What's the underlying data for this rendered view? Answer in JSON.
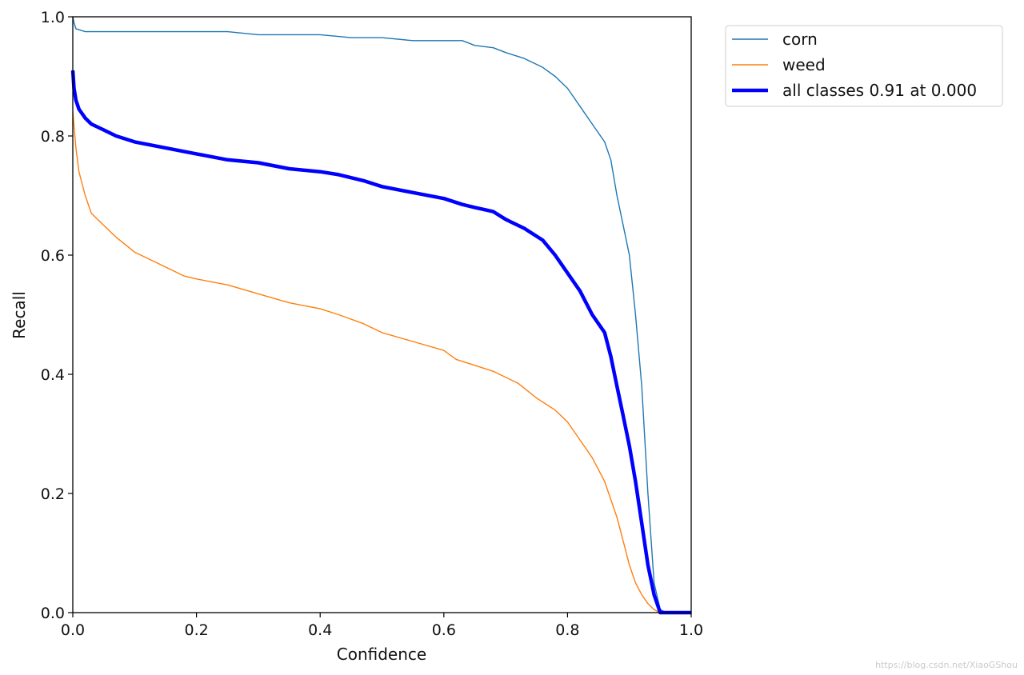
{
  "chart_data": {
    "type": "line",
    "title": "",
    "xlabel": "Confidence",
    "ylabel": "Recall",
    "xlim": [
      0,
      1
    ],
    "ylim": [
      0,
      1
    ],
    "xticks": [
      "0.0",
      "0.2",
      "0.4",
      "0.6",
      "0.8",
      "1.0"
    ],
    "yticks": [
      "0.0",
      "0.2",
      "0.4",
      "0.6",
      "0.8",
      "1.0"
    ],
    "grid": false,
    "legend_position": "outside-top-right",
    "series": [
      {
        "name": "corn",
        "color": "#1f77b4",
        "x": [
          0.0,
          0.002,
          0.005,
          0.02,
          0.05,
          0.1,
          0.15,
          0.2,
          0.25,
          0.3,
          0.35,
          0.4,
          0.45,
          0.5,
          0.55,
          0.6,
          0.63,
          0.65,
          0.68,
          0.7,
          0.73,
          0.76,
          0.78,
          0.8,
          0.82,
          0.84,
          0.86,
          0.87,
          0.88,
          0.89,
          0.9,
          0.91,
          0.92,
          0.93,
          0.94,
          0.95,
          0.96,
          0.97,
          0.98,
          1.0
        ],
        "y": [
          1.0,
          0.99,
          0.98,
          0.975,
          0.975,
          0.975,
          0.975,
          0.975,
          0.975,
          0.97,
          0.97,
          0.97,
          0.965,
          0.965,
          0.96,
          0.96,
          0.96,
          0.952,
          0.948,
          0.94,
          0.93,
          0.915,
          0.9,
          0.88,
          0.85,
          0.82,
          0.79,
          0.76,
          0.7,
          0.65,
          0.6,
          0.5,
          0.38,
          0.2,
          0.05,
          0.005,
          0.0,
          0.0,
          0.0,
          0.0
        ]
      },
      {
        "name": "weed",
        "color": "#ff7f0e",
        "x": [
          0.0,
          0.005,
          0.01,
          0.02,
          0.03,
          0.05,
          0.07,
          0.1,
          0.12,
          0.15,
          0.18,
          0.2,
          0.25,
          0.3,
          0.35,
          0.4,
          0.43,
          0.47,
          0.5,
          0.55,
          0.6,
          0.62,
          0.65,
          0.68,
          0.72,
          0.75,
          0.78,
          0.8,
          0.82,
          0.84,
          0.86,
          0.88,
          0.89,
          0.9,
          0.91,
          0.92,
          0.93,
          0.94,
          0.95,
          0.96,
          1.0
        ],
        "y": [
          0.84,
          0.78,
          0.74,
          0.7,
          0.67,
          0.65,
          0.63,
          0.605,
          0.595,
          0.58,
          0.565,
          0.56,
          0.55,
          0.535,
          0.52,
          0.51,
          0.5,
          0.485,
          0.47,
          0.455,
          0.44,
          0.425,
          0.415,
          0.405,
          0.385,
          0.36,
          0.34,
          0.32,
          0.29,
          0.26,
          0.22,
          0.16,
          0.12,
          0.08,
          0.05,
          0.03,
          0.015,
          0.005,
          0.0,
          0.0,
          0.0
        ]
      },
      {
        "name": "all classes 0.91 at 0.000",
        "color": "#0000ff",
        "x": [
          0.0,
          0.002,
          0.005,
          0.01,
          0.02,
          0.03,
          0.05,
          0.07,
          0.1,
          0.15,
          0.2,
          0.25,
          0.3,
          0.35,
          0.4,
          0.43,
          0.47,
          0.5,
          0.55,
          0.6,
          0.63,
          0.65,
          0.68,
          0.7,
          0.73,
          0.76,
          0.78,
          0.8,
          0.82,
          0.84,
          0.86,
          0.87,
          0.88,
          0.89,
          0.9,
          0.91,
          0.92,
          0.93,
          0.94,
          0.95,
          0.96,
          1.0
        ],
        "y": [
          0.91,
          0.88,
          0.86,
          0.845,
          0.83,
          0.82,
          0.81,
          0.8,
          0.79,
          0.78,
          0.77,
          0.76,
          0.755,
          0.745,
          0.74,
          0.735,
          0.725,
          0.715,
          0.705,
          0.695,
          0.685,
          0.68,
          0.673,
          0.66,
          0.645,
          0.625,
          0.6,
          0.57,
          0.54,
          0.5,
          0.47,
          0.43,
          0.38,
          0.33,
          0.28,
          0.22,
          0.15,
          0.08,
          0.03,
          0.0,
          0.0,
          0.0
        ]
      }
    ]
  },
  "watermark": "https://blog.csdn.net/XiaoGShou"
}
